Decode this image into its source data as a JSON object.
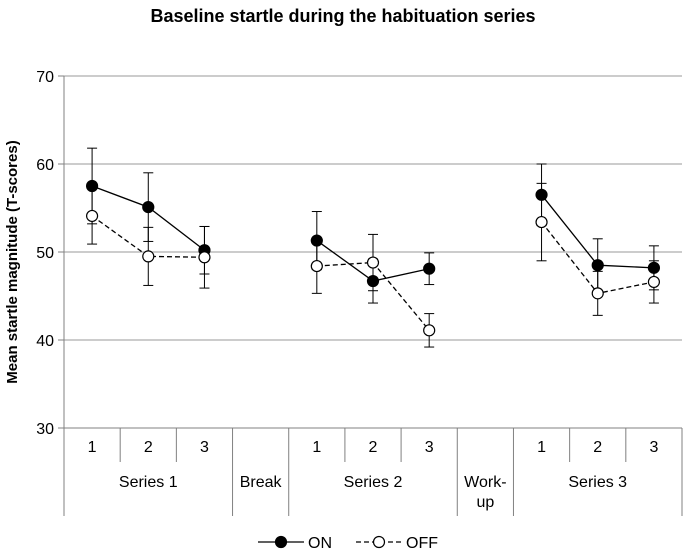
{
  "chart_data": {
    "type": "line",
    "title": "Baseline startle during the habituation series",
    "ylabel": "Mean startle magnitude (T-scores)",
    "xlabel": "",
    "ylim": [
      30,
      70
    ],
    "yticks": [
      30,
      40,
      50,
      60,
      70
    ],
    "grid": true,
    "legend_position": "bottom-center",
    "slots": [
      {
        "label": "1",
        "group": "Series 1"
      },
      {
        "label": "2",
        "group": "Series 1"
      },
      {
        "label": "3",
        "group": "Series 1"
      },
      {
        "label": "",
        "group": "Break"
      },
      {
        "label": "1",
        "group": "Series 2"
      },
      {
        "label": "2",
        "group": "Series 2"
      },
      {
        "label": "3",
        "group": "Series 2"
      },
      {
        "label": "",
        "group": "Work-up"
      },
      {
        "label": "1",
        "group": "Series 3"
      },
      {
        "label": "2",
        "group": "Series 3"
      },
      {
        "label": "3",
        "group": "Series 3"
      }
    ],
    "groups": [
      {
        "label": "Series 1",
        "lines": [
          "Series 1"
        ],
        "start": 0,
        "end": 2
      },
      {
        "label": "Break",
        "lines": [
          "Break"
        ],
        "start": 3,
        "end": 3
      },
      {
        "label": "Series 2",
        "lines": [
          "Series 2"
        ],
        "start": 4,
        "end": 6
      },
      {
        "label": "Work-up",
        "lines": [
          "Work-",
          "up"
        ],
        "start": 7,
        "end": 7
      },
      {
        "label": "Series 3",
        "lines": [
          "Series 3"
        ],
        "start": 8,
        "end": 10
      }
    ],
    "series": [
      {
        "name": "ON",
        "style": "solid",
        "marker": "filled",
        "color": "#000000",
        "segments": [
          {
            "slots": [
              0,
              1,
              2
            ],
            "values": [
              57.5,
              55.1,
              50.2
            ],
            "err": [
              4.3,
              3.9,
              2.7
            ]
          },
          {
            "slots": [
              4,
              5,
              6
            ],
            "values": [
              51.3,
              46.7,
              48.1
            ],
            "err": [
              3.3,
              2.5,
              1.8
            ]
          },
          {
            "slots": [
              8,
              9,
              10
            ],
            "values": [
              56.5,
              48.5,
              48.2
            ],
            "err": [
              3.5,
              3.0,
              2.5
            ]
          }
        ]
      },
      {
        "name": "OFF",
        "style": "dashed",
        "marker": "open",
        "color": "#000000",
        "segments": [
          {
            "slots": [
              0,
              1,
              2
            ],
            "values": [
              54.1,
              49.5,
              49.4
            ],
            "err": [
              3.2,
              3.3,
              3.5
            ]
          },
          {
            "slots": [
              4,
              5,
              6
            ],
            "values": [
              48.4,
              48.8,
              41.1
            ],
            "err": [
              3.1,
              3.2,
              1.9
            ]
          },
          {
            "slots": [
              8,
              9,
              10
            ],
            "values": [
              53.4,
              45.3,
              46.6
            ],
            "err": [
              4.4,
              2.5,
              2.4
            ]
          }
        ]
      }
    ]
  }
}
